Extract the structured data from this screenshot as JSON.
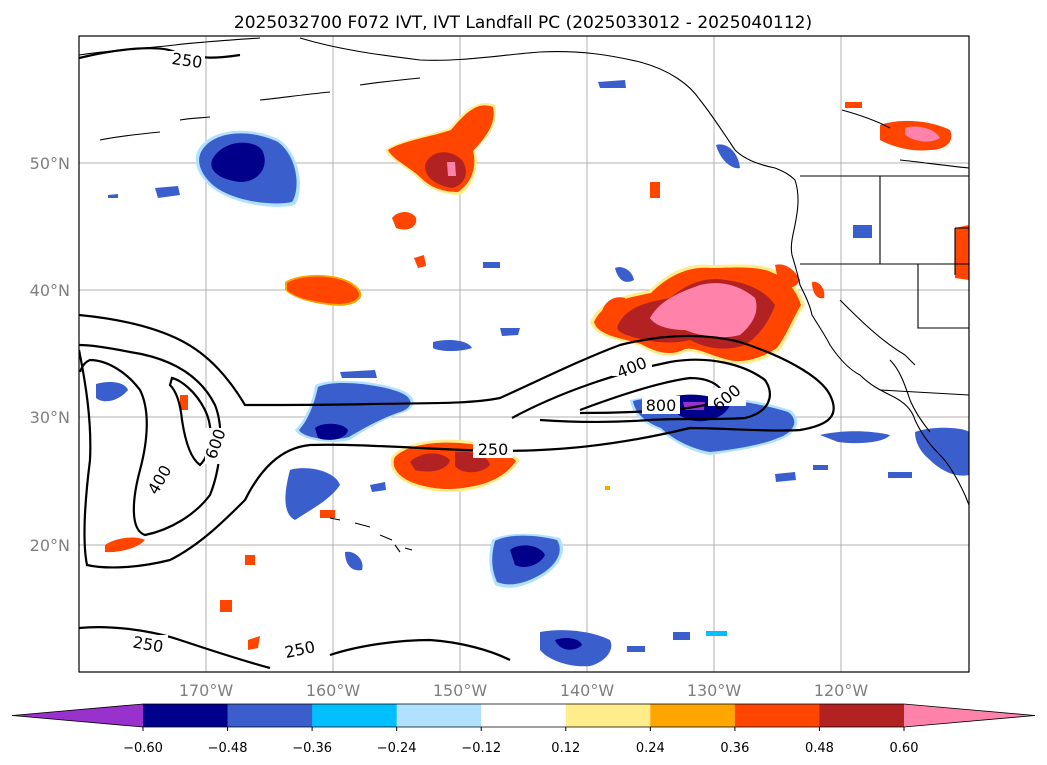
{
  "title": "2025032700 F072 IVT, IVT Landfall PC (2025033012 - 2025040112)",
  "map": {
    "lon_range": [
      -180,
      -110
    ],
    "lat_range": [
      10,
      60
    ],
    "lat_ticks": [
      {
        "value": 50,
        "label": "50°N"
      },
      {
        "value": 40,
        "label": "40°N"
      },
      {
        "value": 30,
        "label": "30°N"
      },
      {
        "value": 20,
        "label": "20°N"
      }
    ],
    "lon_ticks": [
      {
        "value": -170,
        "label": "170°W"
      },
      {
        "value": -160,
        "label": "160°W"
      },
      {
        "value": -150,
        "label": "150°W"
      },
      {
        "value": -140,
        "label": "140°W"
      },
      {
        "value": -130,
        "label": "130°W"
      },
      {
        "value": -120,
        "label": "120°W"
      }
    ],
    "grid": true
  },
  "ivt_contours": {
    "levels": [
      "250",
      "400",
      "600",
      "800"
    ],
    "labels": [
      {
        "text": "250",
        "lon": -170,
        "lat": 58.2
      },
      {
        "text": "400",
        "lon": -132,
        "lat": 34.3
      },
      {
        "text": "800",
        "lon": -132.2,
        "lat": 30.9
      },
      {
        "text": "600",
        "lon": -128.8,
        "lat": 31.6
      },
      {
        "text": "250",
        "lon": -146.3,
        "lat": 27.3
      },
      {
        "text": "600",
        "lon": -169,
        "lat": 27.8
      },
      {
        "text": "400",
        "lon": -176.4,
        "lat": 24.9
      },
      {
        "text": "250",
        "lon": -175.3,
        "lat": 12.2
      },
      {
        "text": "250",
        "lon": -163.8,
        "lat": 11.8
      }
    ]
  },
  "colorbar": {
    "label_values": [
      "−0.60",
      "−0.48",
      "−0.36",
      "−0.24",
      "−0.12",
      "0.12",
      "0.24",
      "0.36",
      "0.48",
      "0.60"
    ],
    "colors": [
      "#9932cc",
      "#00008b",
      "#3a5fcd",
      "#00bfff",
      "#b0e2ff",
      "#ffffff",
      "#ffec8b",
      "#ffa500",
      "#ff4500",
      "#b22222",
      "#ff82ab"
    ]
  }
}
